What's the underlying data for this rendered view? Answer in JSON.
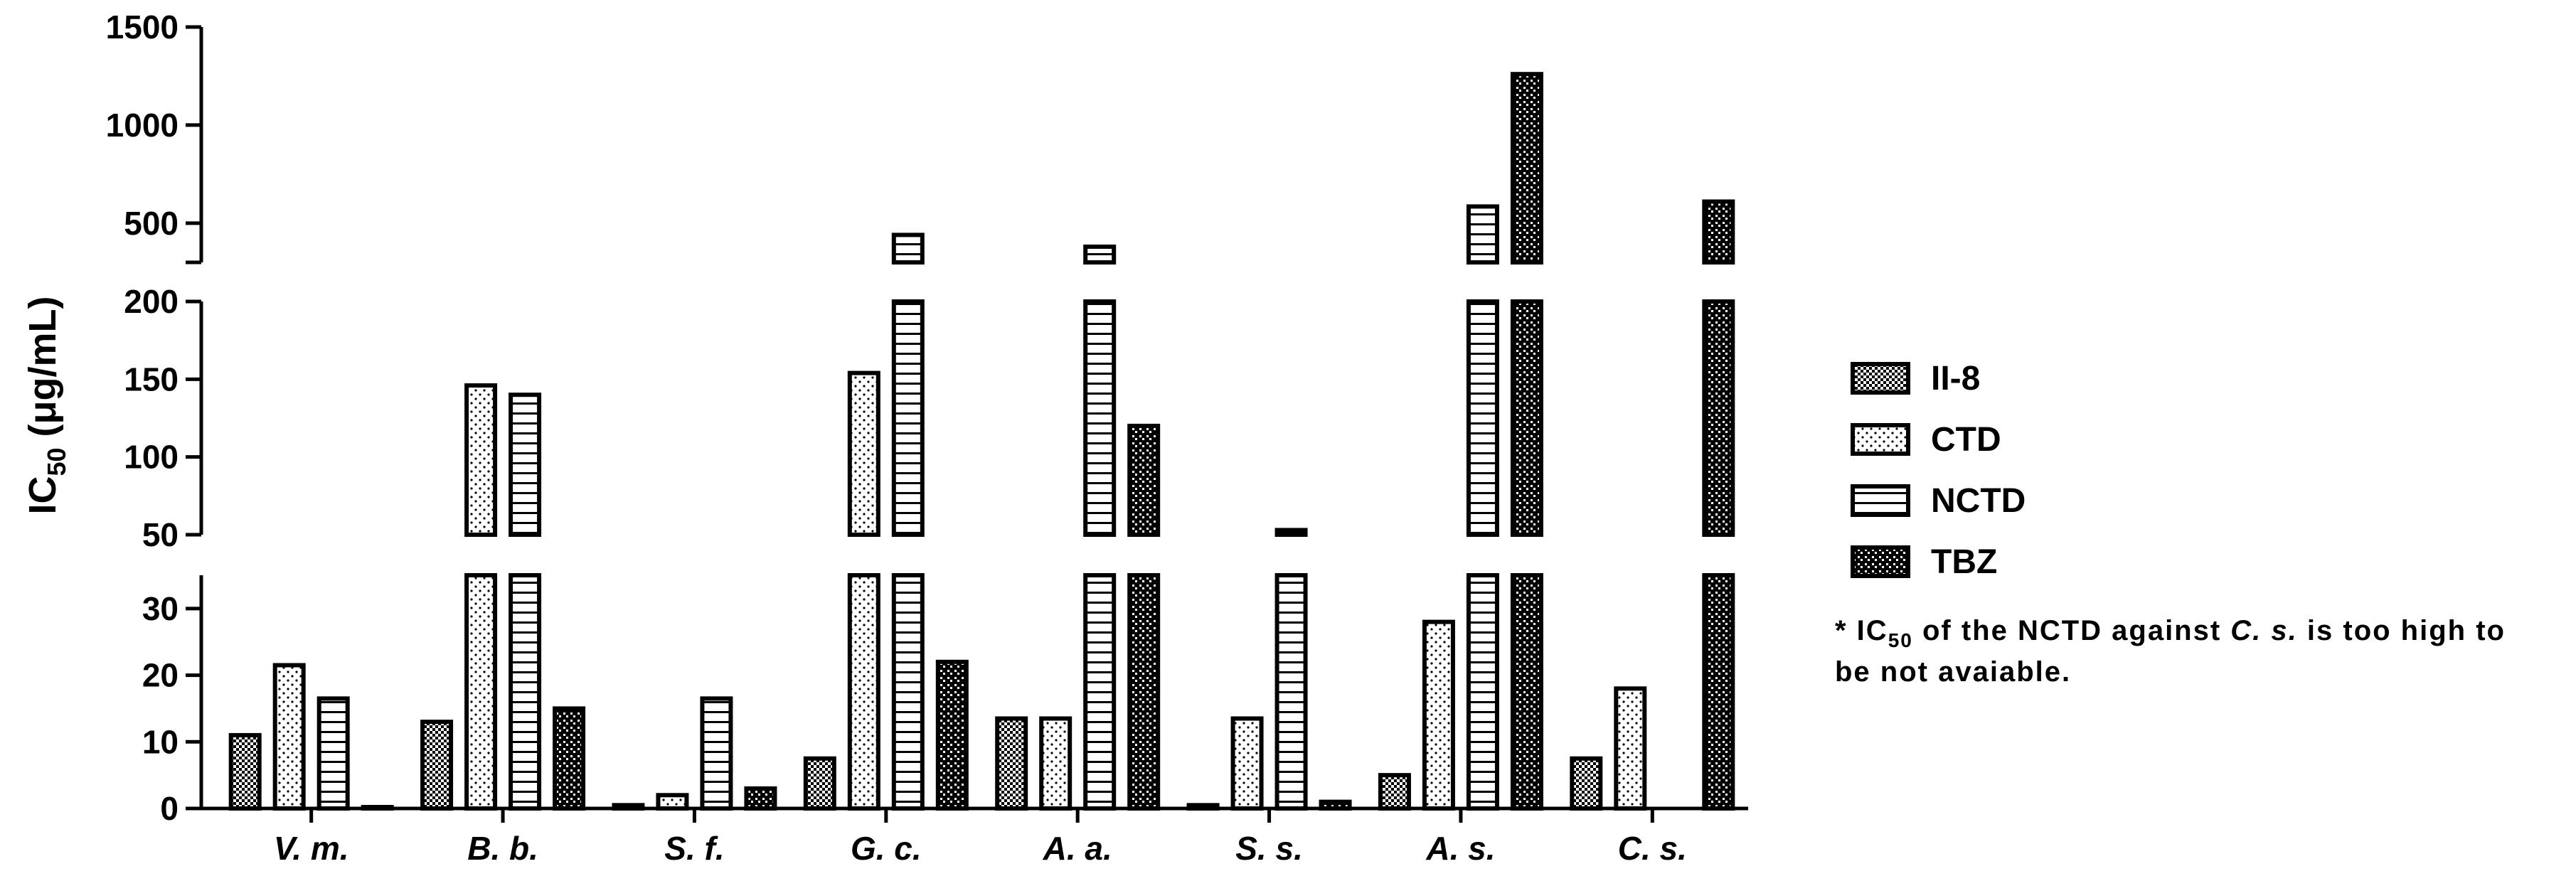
{
  "chart_data": {
    "type": "bar",
    "ylabel_main": "IC",
    "ylabel_sub": "50",
    "ylabel_unit": " (μg/mL)",
    "categories": [
      "V. m.",
      "B. b.",
      "S. f.",
      "G. c.",
      "A. a.",
      "S. s.",
      "A. s.",
      "C. s."
    ],
    "series": [
      {
        "name": "II-8",
        "pattern": "checker",
        "values": [
          11,
          13,
          0.5,
          7.5,
          13.5,
          0.5,
          5,
          7.5
        ]
      },
      {
        "name": "CTD",
        "pattern": "dots",
        "values": [
          21.5,
          146,
          2,
          154,
          13.5,
          13.5,
          28,
          18
        ]
      },
      {
        "name": "NCTD",
        "pattern": "hlines",
        "values": [
          16.5,
          140,
          16.5,
          440,
          380,
          53,
          585,
          null
        ]
      },
      {
        "name": "TBZ",
        "pattern": "dense",
        "values": [
          0.2,
          15,
          3,
          22,
          120,
          1,
          1260,
          610
        ]
      }
    ],
    "axis_segments": [
      {
        "range": [
          0,
          35
        ],
        "ticks": [
          0,
          10,
          20,
          30
        ]
      },
      {
        "range": [
          50,
          200
        ],
        "ticks": [
          50,
          100,
          150,
          200
        ]
      },
      {
        "range": [
          300,
          1500
        ],
        "ticks": [
          500,
          1000,
          1500
        ]
      }
    ],
    "note": {
      "prefix": "* IC",
      "sub": "50",
      "middle": " of the NCTD against ",
      "italic": "C. s.",
      "suffix": " is too high to",
      "line2": "be not avaiable."
    }
  }
}
